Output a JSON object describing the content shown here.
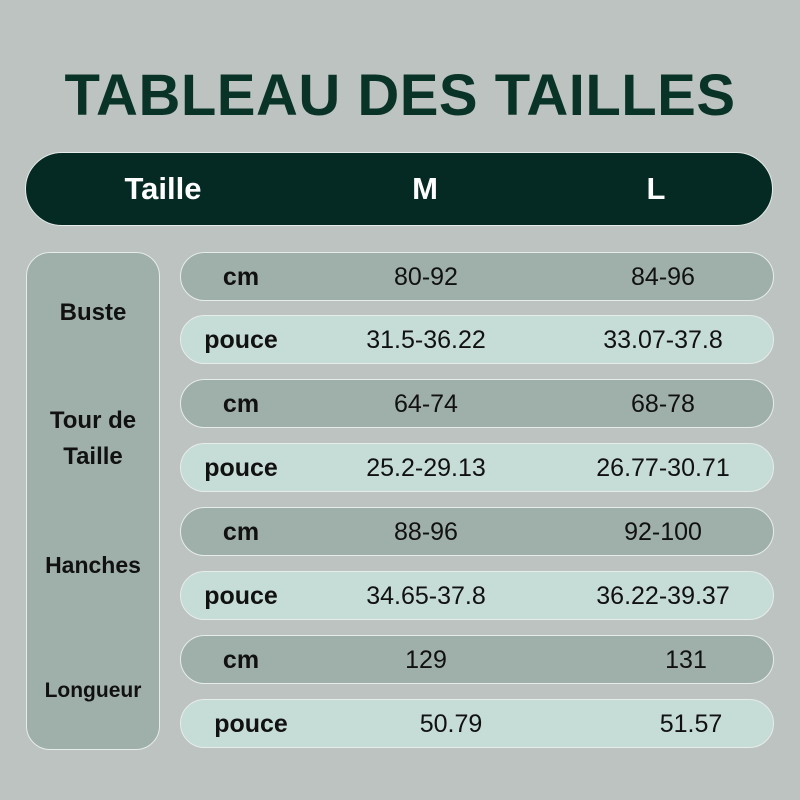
{
  "title": "TABLEAU DES TAILLES",
  "header": {
    "label": "Taille",
    "sizes": [
      "M",
      "L"
    ]
  },
  "measures": [
    {
      "name": "Buste",
      "rows": [
        {
          "unit": "cm",
          "M": "80-92",
          "L": "84-96"
        },
        {
          "unit": "pouce",
          "M": "31.5-36.22",
          "L": "33.07-37.8"
        }
      ]
    },
    {
      "name": "Tour de Taille",
      "rows": [
        {
          "unit": "cm",
          "M": "64-74",
          "L": "68-78"
        },
        {
          "unit": "pouce",
          "M": "25.2-29.13",
          "L": "26.77-30.71"
        }
      ]
    },
    {
      "name": "Hanches",
      "rows": [
        {
          "unit": "cm",
          "M": "88-96",
          "L": "92-100"
        },
        {
          "unit": "pouce",
          "M": "34.65-37.8",
          "L": "36.22-39.37"
        }
      ]
    },
    {
      "name": "Longueur",
      "rows": [
        {
          "unit": "cm",
          "M": "129",
          "L": "131"
        },
        {
          "unit": "pouce",
          "M": "50.79",
          "L": "51.57"
        }
      ]
    }
  ],
  "colors": {
    "background": "#bcc3c0",
    "header": "#052a23",
    "title": "#0a3328",
    "cm_row": "#9fb0ab",
    "pouce_row": "#c6dcd7"
  }
}
